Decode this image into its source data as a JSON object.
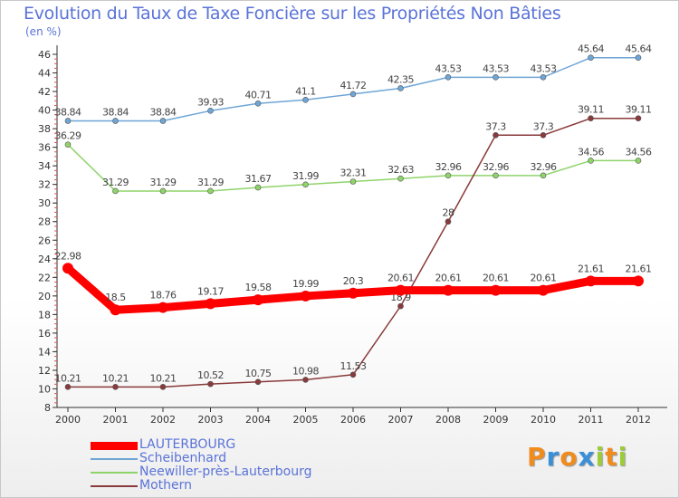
{
  "chart_data": {
    "type": "line",
    "title": "Evolution du Taux de Taxe Foncière sur les Propriétés Non Bâties",
    "ylabel": "(en %)",
    "xlabel": "",
    "x": [
      "2000",
      "2001",
      "2002",
      "2003",
      "2004",
      "2005",
      "2006",
      "2007",
      "2008",
      "2009",
      "2010",
      "2011",
      "2012"
    ],
    "ylim": [
      8,
      46
    ],
    "yticks": [
      "8",
      "10",
      "12",
      "14",
      "16",
      "18",
      "20",
      "22",
      "24",
      "26",
      "28",
      "30",
      "32",
      "34",
      "36",
      "38",
      "40",
      "42",
      "44",
      "46"
    ],
    "grid": false,
    "legend_position": "bottom-left",
    "series": [
      {
        "name": "LAUTERBOURG",
        "color": "#ff0000",
        "values": [
          22.98,
          18.5,
          18.76,
          19.17,
          19.58,
          19.99,
          20.3,
          20.61,
          20.61,
          20.61,
          20.61,
          21.61,
          21.61
        ],
        "labels": [
          "22.98",
          "18.5",
          "18.76",
          "19.17",
          "19.58",
          "19.99",
          "20.3",
          "20.61",
          "20.61",
          "20.61",
          "20.61",
          "21.61",
          "21.61"
        ]
      },
      {
        "name": "Scheibenhard",
        "color": "#6fa6d6",
        "values": [
          38.84,
          38.84,
          38.84,
          39.93,
          40.71,
          41.1,
          41.72,
          42.35,
          43.53,
          43.53,
          43.53,
          45.64,
          45.64
        ],
        "labels": [
          "38.84",
          "38.84",
          "38.84",
          "39.93",
          "40.71",
          "41.1",
          "41.72",
          "42.35",
          "43.53",
          "43.53",
          "43.53",
          "45.64",
          "45.64"
        ]
      },
      {
        "name": "Neewiller-près-Lauterbourg",
        "color": "#8fd46a",
        "values": [
          36.29,
          31.29,
          31.29,
          31.29,
          31.67,
          31.99,
          32.31,
          32.63,
          32.96,
          32.96,
          32.96,
          34.56,
          34.56
        ],
        "labels": [
          "36.29",
          "31.29",
          "31.29",
          "31.29",
          "31.67",
          "31.99",
          "32.31",
          "32.63",
          "32.96",
          "32.96",
          "32.96",
          "34.56",
          "34.56"
        ]
      },
      {
        "name": "Mothern",
        "color": "#8a3a3a",
        "values": [
          10.21,
          10.21,
          10.21,
          10.52,
          10.75,
          10.98,
          11.53,
          18.9,
          28,
          37.3,
          37.3,
          39.11,
          39.11
        ],
        "labels": [
          "10.21",
          "10.21",
          "10.21",
          "10.52",
          "10.75",
          "10.98",
          "11.53",
          "18.9",
          "28",
          "37.3",
          "37.3",
          "39.11",
          "39.11"
        ]
      }
    ]
  },
  "logo": {
    "letters": [
      "P",
      "r",
      "o",
      "x",
      "i",
      "t",
      "i"
    ],
    "colors": [
      "#f08c1e",
      "#3a8fd9",
      "#f08c1e",
      "#3a8fd9",
      "#9ccc3a",
      "#f08c1e",
      "#9ccc3a"
    ]
  }
}
